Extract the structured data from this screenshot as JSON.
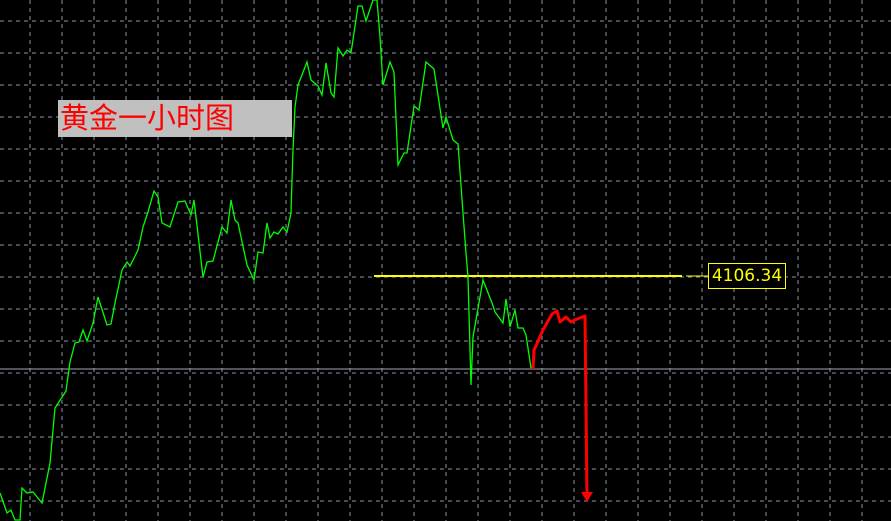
{
  "chart_data": {
    "type": "line",
    "title": "黄金一小时图",
    "grid": true,
    "background": "#000000",
    "colors": {
      "price_line": "#00ff00",
      "level_line": "#ffff00",
      "projection": "#ff0000",
      "grid": "#8a94a3",
      "current_price_line": "#a0a6ae"
    },
    "level": {
      "value": 4106.34,
      "label": "4106.34"
    },
    "current_price": 4083.09,
    "series": [
      {
        "values": [
          [
            0,
            4052.09
          ],
          [
            7,
            4047.09
          ],
          [
            11,
            4047.84
          ],
          [
            15,
            4045.34
          ],
          [
            20,
            4045.34
          ],
          [
            22,
            4053.34
          ],
          [
            27,
            4052.09
          ],
          [
            33,
            4052.34
          ],
          [
            42,
            4049.59
          ],
          [
            50,
            4059.59
          ],
          [
            55,
            4073.34
          ],
          [
            66,
            4077.59
          ],
          [
            70,
            4084.84
          ],
          [
            75,
            4089.59
          ],
          [
            79,
            4089.84
          ],
          [
            83,
            4092.84
          ],
          [
            87,
            4090.09
          ],
          [
            93,
            4094.59
          ],
          [
            98,
            4101.09
          ],
          [
            107,
            4094.09
          ],
          [
            111,
            4094.34
          ],
          [
            115,
            4099.59
          ],
          [
            122,
            4107.84
          ],
          [
            127,
            4109.84
          ],
          [
            130,
            4108.84
          ],
          [
            138,
            4112.84
          ],
          [
            143,
            4118.59
          ],
          [
            148,
            4122.34
          ],
          [
            154,
            4127.59
          ],
          [
            158,
            4126.09
          ],
          [
            162,
            4119.59
          ],
          [
            170,
            4118.59
          ],
          [
            178,
            4124.84
          ],
          [
            185,
            4125.09
          ],
          [
            191,
            4121.59
          ],
          [
            194,
            4125.34
          ],
          [
            203,
            4106.09
          ],
          [
            207,
            4109.84
          ],
          [
            213,
            4110.09
          ],
          [
            222,
            4118.59
          ],
          [
            227,
            4117.09
          ],
          [
            231,
            4125.34
          ],
          [
            235,
            4120.34
          ],
          [
            238,
            4119.59
          ],
          [
            247,
            4109.09
          ],
          [
            254,
            4105.34
          ],
          [
            258,
            4112.34
          ],
          [
            263,
            4112.09
          ],
          [
            267,
            4119.59
          ],
          [
            270,
            4115.84
          ],
          [
            274,
            4117.34
          ],
          [
            278,
            4116.84
          ],
          [
            283,
            4118.59
          ],
          [
            287,
            4117.34
          ],
          [
            291,
            4122.09
          ],
          [
            292,
            4130.34
          ],
          [
            293,
            4137.84
          ],
          [
            295,
            4148.59
          ],
          [
            298,
            4154.09
          ],
          [
            307,
            4159.84
          ],
          [
            311,
            4155.34
          ],
          [
            318,
            4153.84
          ],
          [
            322,
            4151.59
          ],
          [
            326,
            4159.59
          ],
          [
            331,
            4152.09
          ],
          [
            334,
            4151.09
          ],
          [
            338,
            4163.34
          ],
          [
            343,
            4161.34
          ],
          [
            347,
            4162.84
          ],
          [
            351,
            4162.09
          ],
          [
            358,
            4173.84
          ],
          [
            362,
            4173.84
          ],
          [
            366,
            4170.09
          ],
          [
            373,
            4175.34
          ],
          [
            377,
            4175.34
          ],
          [
            380,
            4166.09
          ],
          [
            383,
            4154.09
          ],
          [
            390,
            4159.84
          ],
          [
            394,
            4157.34
          ],
          [
            398,
            4134.09
          ],
          [
            404,
            4137.09
          ],
          [
            407,
            4137.09
          ],
          [
            414,
            4148.84
          ],
          [
            419,
            4147.84
          ],
          [
            426,
            4159.84
          ],
          [
            434,
            4158.09
          ],
          [
            443,
            4143.34
          ],
          [
            446,
            4146.09
          ],
          [
            453,
            4140.34
          ],
          [
            458,
            4139.34
          ],
          [
            463,
            4122.09
          ],
          [
            466,
            4112.09
          ],
          [
            468,
            4106.09
          ],
          [
            471,
            4079.09
          ],
          [
            473,
            4091.09
          ],
          [
            480,
            4101.09
          ],
          [
            483,
            4105.34
          ],
          [
            492,
            4099.59
          ],
          [
            495,
            4097.34
          ],
          [
            503,
            4094.59
          ],
          [
            506,
            4100.59
          ],
          [
            510,
            4093.59
          ],
          [
            515,
            4097.84
          ],
          [
            518,
            4093.34
          ],
          [
            523,
            4093.34
          ],
          [
            526,
            4091.59
          ],
          [
            531,
            4083.34
          ]
        ]
      }
    ],
    "projection": {
      "values": [
        [
          533,
          4083.09
        ],
        [
          534,
          4087.84
        ],
        [
          543,
          4092.84
        ],
        [
          552,
          4096.84
        ],
        [
          557,
          4097.59
        ],
        [
          560,
          4094.84
        ],
        [
          566,
          4096.09
        ],
        [
          571,
          4094.84
        ],
        [
          577,
          4095.59
        ],
        [
          585,
          4096.34
        ],
        [
          587,
          4050.84
        ]
      ],
      "arrow": "down"
    }
  }
}
